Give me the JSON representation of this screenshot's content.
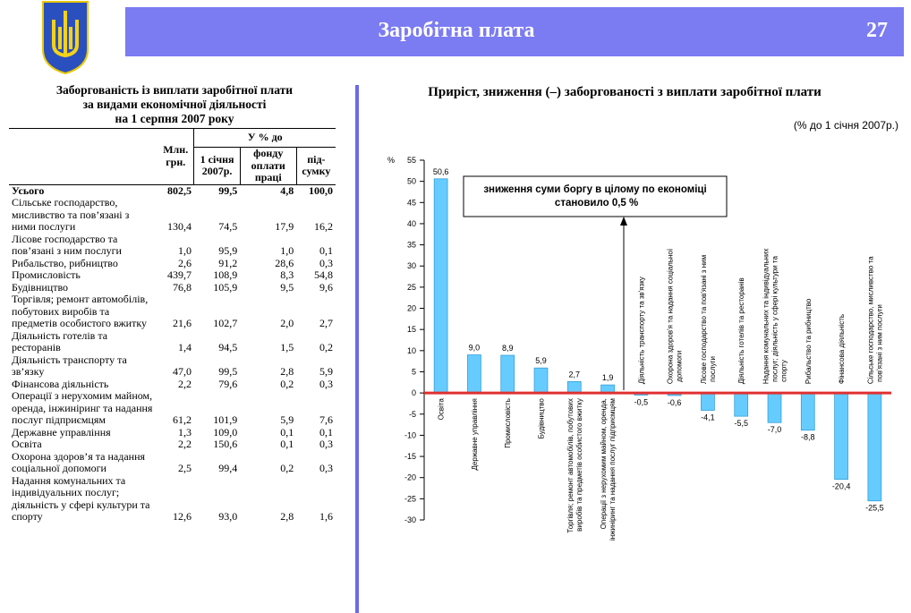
{
  "header": {
    "title": "Заробітна плата",
    "page_number": "27"
  },
  "table": {
    "title": [
      "Заборгованість із виплати заробітної плати",
      "за видами економічної діяльності",
      "на 1 серпня 2007 року"
    ],
    "header_top": [
      "Млн. грн.",
      "У % до"
    ],
    "header_sub": [
      "1 січня 2007р.",
      "фонду оплати праці",
      "під-сумку"
    ],
    "rows": [
      [
        "Усього",
        "802,5",
        "99,5",
        "4,8",
        "100,0"
      ],
      [
        "Сільське господарство, мисливство та пов’язані з ними послуги",
        "130,4",
        "74,5",
        "17,9",
        "16,2"
      ],
      [
        "Лісове господарство  та пов’язані з ним послуги",
        "1,0",
        "95,9",
        "1,0",
        "0,1"
      ],
      [
        "Рибальство, рибництво",
        "2,6",
        "91,2",
        "28,6",
        "0,3"
      ],
      [
        "Промисловість",
        "439,7",
        "108,9",
        "8,3",
        "54,8"
      ],
      [
        "Будівництво",
        "76,8",
        "105,9",
        "9,5",
        "9,6"
      ],
      [
        "Торгівля; ремонт автомобілів, побутових виробів та предметів особистого вжитку",
        "21,6",
        "102,7",
        "2,0",
        "2,7"
      ],
      [
        "Діяльність готелів та ресторанів",
        "1,4",
        "94,5",
        "1,5",
        "0,2"
      ],
      [
        "Діяльність транспорту та зв’язку",
        "47,0",
        "99,5",
        "2,8",
        "5,9"
      ],
      [
        "Фінансова діяльність",
        "2,2",
        "79,6",
        "0,2",
        "0,3"
      ],
      [
        "Операції з нерухомим майном, оренда, інжиніринг та надання послуг підприємцям",
        "61,2",
        "101,9",
        "5,9",
        "7,6"
      ],
      [
        "Державне управління",
        "1,3",
        "109,0",
        "0,1",
        "0,1"
      ],
      [
        "Освіта",
        "2,2",
        "150,6",
        "0,1",
        "0,3"
      ],
      [
        "Охорона здоров’я та надання соціальної допомоги",
        "2,5",
        "99,4",
        "0,2",
        "0,3"
      ],
      [
        "Надання комунальних та індивідуальних послуг; діяльність у сфері культури та спорту",
        "12,6",
        "93,0",
        "2,8",
        "1,6"
      ]
    ]
  },
  "chart_data": {
    "type": "bar",
    "title": "Приріст, зниження (–) заборгованості з виплати заробітної плати",
    "subtitle": "(% до 1 січня 2007р.)",
    "y_label": "%",
    "annotation": "зниження суми боргу в цілому по економіці становило  0,5 %",
    "color": "#66ccff",
    "categories": [
      "Освіта",
      "Державне управління",
      "Промисловість",
      "Будівництво",
      "Торгівля; ремонт автомобілів, побутових виробів та предметів особистого вжитку",
      "Операції з нерухомим майном, оренда, інжиніринг та надання послуг підприємцям",
      "Діяльність транспорту та зв'язку",
      "Охорона здоров'я та надання соціальної допомоги",
      "Лісове господарство та пов'язані з ним послуги",
      "Діяльність готелів та ресторанів",
      "Надання комунальних та індивідуальних послуг; діяльність у сфері культури та спорту",
      "Рибальство та рибництво",
      "Фінансова діяльність",
      "Сільське господарство, мисливство та пов'язані з ним послуги"
    ],
    "values": [
      50.6,
      9.0,
      8.9,
      5.9,
      2.7,
      1.9,
      -0.5,
      -0.6,
      -4.1,
      -5.5,
      -7.0,
      -8.8,
      -20.4,
      -25.5
    ],
    "value_labels": [
      "50,6",
      "9,0",
      "8,9",
      "5,9",
      "2,7",
      "1,9",
      "-0,5",
      "-0,6",
      "-4,1",
      "-5,5",
      "-7,0",
      "-8,8",
      "-20,4",
      "-25,5"
    ],
    "ylim": [
      -30,
      55
    ],
    "yticks": [
      -30,
      -25,
      -20,
      -15,
      -10,
      -5,
      0,
      5,
      10,
      15,
      20,
      25,
      30,
      35,
      40,
      45,
      50,
      55
    ]
  }
}
